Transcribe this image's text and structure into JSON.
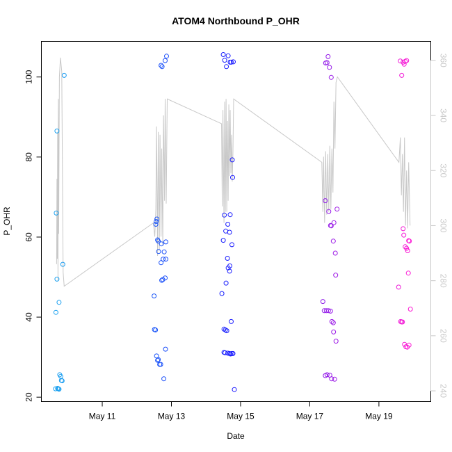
{
  "chart_data": {
    "type": "scatter",
    "title": "ATOM4 Northbound P_OHR",
    "xlabel": "Date",
    "ylabel": "P_OHR",
    "x_ticks": [
      "May 11",
      "May 13",
      "May 15",
      "May 17",
      "May 19"
    ],
    "x_tick_values": [
      11,
      13,
      15,
      17,
      19
    ],
    "xlim": [
      9.24,
      20.5
    ],
    "ylim": [
      18.9,
      108.9
    ],
    "y_ticks": [
      20,
      40,
      60,
      80,
      100
    ],
    "y2_ticks": [
      240,
      260,
      280,
      300,
      320,
      340,
      360
    ],
    "y2lim": [
      236.1,
      366.9
    ],
    "grid": false,
    "legend": "none",
    "colors": {
      "points_start": "#1aa3f0",
      "points_mid": "#1a1aff",
      "points_end": "#ff1ad4",
      "secondary_line": "#c8c8c8",
      "secondary_axis": "#c8c8c8"
    },
    "series": [
      {
        "type": "points",
        "x": [
          9.65,
          9.71,
          9.73,
          9.75,
          9.86,
          9.9,
          9.69,
          9.67,
          9.66,
          9.69,
          9.75,
          9.77,
          9.8,
          9.82,
          9.84,
          12.5,
          12.55,
          12.56,
          12.58,
          12.6,
          12.62,
          12.63,
          12.7,
          12.71,
          12.72,
          12.75,
          12.76,
          12.79,
          12.82,
          12.84,
          12.84,
          12.7,
          12.73,
          12.82,
          12.86,
          12.51,
          12.54,
          12.57,
          12.6,
          12.62,
          12.66,
          12.69,
          12.78,
          12.83,
          14.46,
          14.53,
          14.57,
          14.52,
          14.56,
          14.6,
          14.63,
          14.68,
          14.7,
          14.75,
          14.5,
          14.54,
          14.59,
          14.64,
          14.7,
          14.73,
          14.79,
          14.76,
          14.62,
          14.68,
          14.52,
          14.55,
          14.63,
          14.68,
          14.71,
          14.75,
          14.78,
          14.82,
          14.5,
          14.58,
          14.64,
          14.69,
          14.73,
          14.77,
          17.38,
          17.42,
          17.48,
          17.54,
          17.6,
          17.69,
          17.76,
          17.45,
          17.55,
          17.6,
          17.62,
          17.68,
          17.7,
          17.74,
          17.46,
          17.5,
          17.53,
          17.57,
          17.62,
          17.64,
          17.68,
          17.45,
          17.5,
          17.58,
          17.63,
          17.72,
          17.75,
          17.79,
          19.57,
          19.63,
          19.66,
          19.68,
          19.74,
          19.78,
          19.82,
          19.87,
          19.91,
          19.7,
          19.72,
          19.76,
          19.8,
          19.83,
          19.86,
          19.62,
          19.66,
          19.7,
          19.73,
          19.76,
          19.8,
          19.85,
          19.88
        ],
        "y": [
          22.1,
          22.2,
          22.1,
          22.0,
          53.2,
          100.4,
          86.5,
          66.0,
          41.2,
          49.5,
          43.7,
          25.6,
          25.2,
          24.2,
          24.1,
          45.3,
          63.2,
          63.9,
          64.5,
          59.3,
          59.0,
          56.4,
          53.6,
          58.3,
          49.2,
          49.4,
          54.5,
          56.3,
          49.8,
          54.5,
          58.8,
          102.9,
          102.6,
          104.1,
          105.2,
          36.9,
          36.8,
          30.3,
          29.2,
          29.4,
          28.2,
          28.2,
          24.6,
          32.0,
          45.9,
          65.5,
          61.5,
          37.0,
          36.8,
          36.6,
          63.2,
          61.2,
          65.6,
          58.1,
          105.6,
          104.2,
          102.6,
          105.3,
          103.7,
          103.7,
          103.8,
          79.3,
          54.7,
          51.5,
          31.2,
          31.1,
          31.0,
          30.9,
          30.8,
          30.9,
          30.9,
          21.9,
          59.2,
          48.5,
          52.3,
          52.8,
          38.9,
          74.9,
          43.9,
          41.6,
          41.6,
          41.6,
          41.5,
          36.3,
          34.0,
          69.1,
          66.4,
          62.9,
          62.8,
          59.0,
          63.6,
          56.0,
          103.5,
          103.6,
          105.1,
          102.4,
          99.9,
          38.9,
          38.6,
          25.4,
          25.6,
          25.5,
          24.6,
          24.5,
          50.5,
          67.0,
          47.5,
          38.9,
          38.8,
          38.8,
          33.2,
          32.6,
          32.5,
          33.0,
          42.0,
          62.1,
          60.5,
          57.6,
          57.2,
          56.6,
          59.1,
          104.0,
          100.4,
          103.7,
          103.2,
          103.9,
          104.1,
          51.0,
          59.0
        ]
      },
      {
        "type": "line",
        "axis": "right",
        "x": [
          9.68,
          9.69,
          9.7,
          9.71,
          9.72,
          9.73,
          9.74,
          9.76,
          9.79,
          9.83,
          9.87,
          9.9,
          12.48,
          12.52,
          12.55,
          12.57,
          12.6,
          12.62,
          12.65,
          12.67,
          12.7,
          12.72,
          12.75,
          12.77,
          12.8,
          12.82,
          12.85,
          12.88,
          14.45,
          14.47,
          14.49,
          14.52,
          14.54,
          14.56,
          14.58,
          14.6,
          14.62,
          14.64,
          14.66,
          14.68,
          14.7,
          14.72,
          14.74,
          14.76,
          14.78,
          14.8,
          17.35,
          17.38,
          17.4,
          17.43,
          17.46,
          17.49,
          17.52,
          17.55,
          17.58,
          17.61,
          17.64,
          17.67,
          17.7,
          17.73,
          17.76,
          17.8,
          19.58,
          19.62,
          19.65,
          19.68,
          19.71,
          19.74,
          19.77,
          19.8,
          19.83,
          19.86,
          19.9
        ],
        "y": [
          286,
          317,
          288,
          334,
          280,
          346,
          297,
          354,
          361,
          356,
          283,
          278,
          301,
          296,
          306,
          336,
          289,
          334,
          291,
          333,
          296,
          328,
          293,
          340,
          309,
          346,
          308,
          346,
          337,
          307,
          342,
          301,
          345,
          305,
          346,
          305,
          338,
          309,
          344,
          318,
          342,
          319,
          333,
          316,
          327,
          346,
          323,
          305,
          325,
          301,
          327,
          304,
          326,
          305,
          329,
          306,
          328,
          312,
          345,
          328,
          352,
          354,
          323,
          332,
          311,
          326,
          305,
          332,
          300,
          320,
          299,
          323,
          300
        ]
      }
    ]
  }
}
